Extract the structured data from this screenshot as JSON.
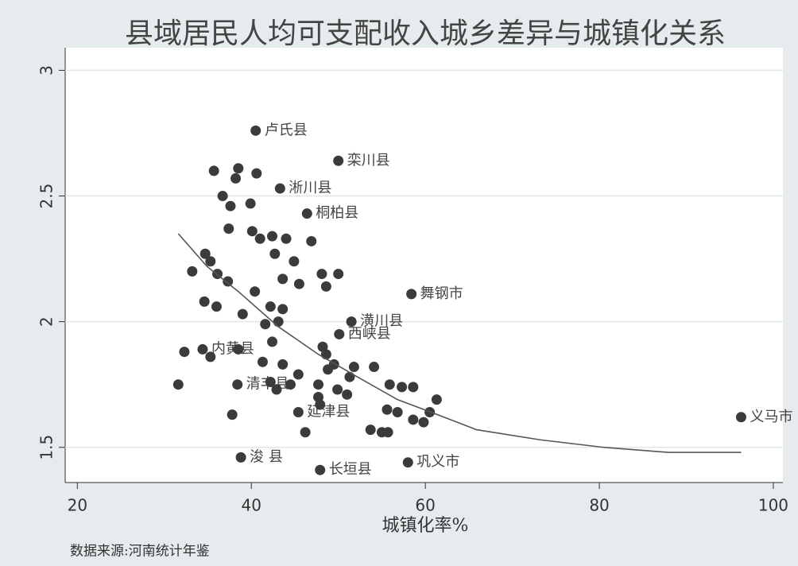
{
  "chart_data": {
    "type": "scatter",
    "title": "县域居民人均可支配收入城乡差异与城镇化关系",
    "xlabel": "城镇化率%",
    "source": "数据来源:河南统计年鉴",
    "color": "#3b3b3b",
    "xlim": [
      18.6,
      101.1
    ],
    "xticks": [
      20,
      40,
      60,
      80,
      100
    ],
    "ylim": [
      1.36,
      3.09
    ],
    "yticks": [
      1.5,
      2,
      2.5,
      3
    ],
    "grid": true,
    "x": [
      40.5,
      50.0,
      58.4,
      96.3,
      58.0,
      47.9,
      38.8,
      43.3,
      46.4,
      51.5,
      50.1,
      45.4,
      38.4,
      34.4,
      35.7,
      38.5,
      40.6,
      38.2,
      36.7,
      37.6,
      39.9,
      37.4,
      40.1,
      34.7,
      35.3,
      33.2,
      36.1,
      37.3,
      34.6,
      36.0,
      39.0,
      32.3,
      31.6,
      35.3,
      37.8,
      46.2,
      51.0,
      58.6,
      59.8,
      60.5,
      61.3,
      58.6,
      55.7,
      56.8,
      48.8,
      43.6,
      42.4,
      43.1,
      41.6,
      41.0,
      42.7,
      44.9,
      48.1,
      50.0,
      43.6,
      45.5,
      48.6,
      40.4,
      42.2,
      43.6,
      44.0,
      46.9,
      42.4,
      49.5,
      51.8,
      54.1,
      55.9,
      57.3,
      55.6,
      53.7,
      55.0,
      51.3,
      49.9,
      47.7,
      45.4,
      42.2,
      42.9,
      44.5,
      41.3,
      38.5,
      48.2,
      48.6,
      47.7,
      47.9
    ],
    "values": [
      2.76,
      2.64,
      2.11,
      1.62,
      1.44,
      1.41,
      1.46,
      2.53,
      2.43,
      2.0,
      1.95,
      1.64,
      1.75,
      1.89,
      2.6,
      2.61,
      2.59,
      2.57,
      2.5,
      2.46,
      2.47,
      2.37,
      2.36,
      2.27,
      2.24,
      2.2,
      2.19,
      2.16,
      2.08,
      2.06,
      2.03,
      1.88,
      1.75,
      1.86,
      1.63,
      1.56,
      1.71,
      1.74,
      1.6,
      1.64,
      1.69,
      1.61,
      1.56,
      1.64,
      1.81,
      1.83,
      1.92,
      2.0,
      1.99,
      2.33,
      2.27,
      2.24,
      2.19,
      2.19,
      2.17,
      2.15,
      2.14,
      2.12,
      2.06,
      2.05,
      2.33,
      2.32,
      2.34,
      1.83,
      1.82,
      1.82,
      1.75,
      1.74,
      1.65,
      1.57,
      1.56,
      1.78,
      1.73,
      1.75,
      1.79,
      1.76,
      1.73,
      1.75,
      1.84,
      1.89,
      1.9,
      1.87,
      1.7,
      1.67
    ],
    "labels": [
      "卢氏县",
      "栾川县",
      "舞钢市",
      "义马市",
      "巩义市",
      "长垣县",
      "浚 县",
      "淅川县",
      "桐柏县",
      "潢川县",
      "西峡县",
      "延津县",
      "清丰县",
      "内黄县",
      null,
      null,
      null,
      null,
      null,
      null,
      null,
      null,
      null,
      null,
      null,
      null,
      null,
      null,
      null,
      null,
      null,
      null,
      null,
      null,
      null,
      null,
      null,
      null,
      null,
      null,
      null,
      null,
      null,
      null,
      null,
      null,
      null,
      null,
      null,
      null,
      null,
      null,
      null,
      null,
      null,
      null,
      null,
      null,
      null,
      null,
      null,
      null,
      null,
      null,
      null,
      null,
      null,
      null,
      null,
      null,
      null,
      null,
      null,
      null,
      null,
      null,
      null,
      null,
      null,
      null,
      null,
      null,
      null,
      null
    ],
    "fit": {
      "type": "line",
      "color": "#555555",
      "x": [
        31.6,
        34.9,
        38.5,
        43.1,
        47.7,
        52.2,
        56.8,
        61.4,
        65.9,
        73.2,
        80.5,
        87.9,
        96.3
      ],
      "values": [
        2.35,
        2.22,
        2.12,
        1.98,
        1.87,
        1.78,
        1.69,
        1.63,
        1.57,
        1.53,
        1.5,
        1.48,
        1.48
      ]
    }
  }
}
